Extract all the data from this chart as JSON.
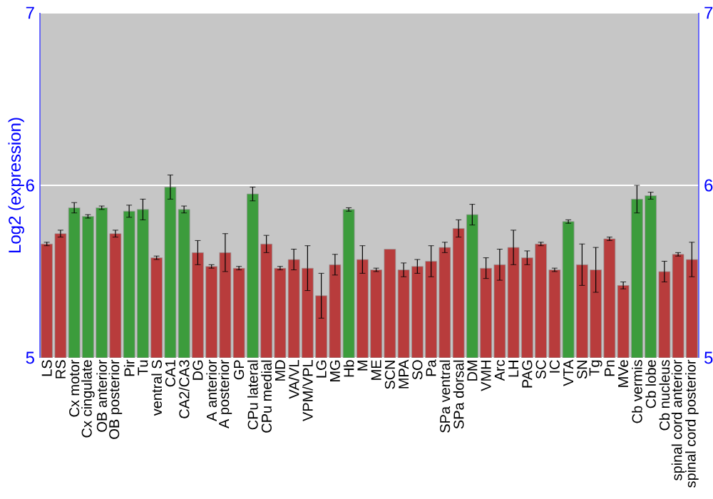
{
  "chart_data": {
    "type": "bar",
    "ylabel": "Log2 (expression)",
    "categories": [
      "LS",
      "RS",
      "Cx motor",
      "Cx cingulate",
      "OB anterior",
      "OB posterior",
      "Pir",
      "Tu",
      "ventral S",
      "CA1",
      "CA2/CA3",
      "DG",
      "A anterior",
      "A posterior",
      "GP",
      "CPu lateral",
      "CPu medial",
      "MD",
      "VA/VL",
      "VPM/VPL",
      "LG",
      "MG",
      "Hb",
      "M",
      "ME",
      "SCN",
      "MPA",
      "SO",
      "Pa",
      "SPa ventral",
      "SPa dorsal",
      "DM",
      "VMH",
      "Arc",
      "LH",
      "PAG",
      "SC",
      "IC",
      "VTA",
      "SN",
      "Tg",
      "Pn",
      "MVe",
      "Cb vermis",
      "Cb lobe",
      "Cb nucleus",
      "spinal cord anterior",
      "spinal cord posterior"
    ],
    "values": [
      5.66,
      5.72,
      5.87,
      5.82,
      5.87,
      5.72,
      5.85,
      5.86,
      5.58,
      5.99,
      5.86,
      5.61,
      5.53,
      5.61,
      5.52,
      5.95,
      5.66,
      5.52,
      5.57,
      5.52,
      5.36,
      5.54,
      5.86,
      5.57,
      5.51,
      5.63,
      5.51,
      5.53,
      5.56,
      5.64,
      5.75,
      5.83,
      5.52,
      5.54,
      5.64,
      5.58,
      5.66,
      5.51,
      5.79,
      5.54,
      5.51,
      5.69,
      5.42,
      5.92,
      5.94,
      5.5,
      5.6,
      5.57
    ],
    "errors": [
      0.01,
      0.02,
      0.03,
      0.01,
      0.01,
      0.02,
      0.035,
      0.06,
      0.01,
      0.07,
      0.02,
      0.07,
      0.01,
      0.11,
      0.01,
      0.04,
      0.05,
      0.01,
      0.06,
      0.13,
      0.13,
      0.06,
      0.01,
      0.08,
      0.01,
      null,
      0.04,
      0.04,
      0.09,
      0.03,
      0.05,
      0.06,
      0.06,
      0.09,
      0.1,
      0.04,
      0.01,
      0.01,
      0.01,
      0.12,
      0.13,
      0.01,
      0.02,
      0.08,
      0.02,
      0.06,
      0.01,
      0.1
    ],
    "colors": [
      "#b83c3c",
      "#b83c3c",
      "#3c9c3c",
      "#3c9c3c",
      "#3c9c3c",
      "#b83c3c",
      "#3c9c3c",
      "#3c9c3c",
      "#b83c3c",
      "#3c9c3c",
      "#3c9c3c",
      "#b83c3c",
      "#b83c3c",
      "#b83c3c",
      "#b83c3c",
      "#3c9c3c",
      "#b83c3c",
      "#b83c3c",
      "#b83c3c",
      "#b83c3c",
      "#b83c3c",
      "#b83c3c",
      "#3c9c3c",
      "#b83c3c",
      "#b83c3c",
      "#b83c3c",
      "#b83c3c",
      "#b83c3c",
      "#b83c3c",
      "#b83c3c",
      "#b83c3c",
      "#3c9c3c",
      "#b83c3c",
      "#b83c3c",
      "#b83c3c",
      "#b83c3c",
      "#b83c3c",
      "#b83c3c",
      "#3c9c3c",
      "#b83c3c",
      "#b83c3c",
      "#b83c3c",
      "#b83c3c",
      "#3c9c3c",
      "#3c9c3c",
      "#b83c3c",
      "#b83c3c",
      "#b83c3c"
    ],
    "ylim": [
      5,
      7
    ],
    "yticks": [
      5,
      6,
      7
    ],
    "y2lim": [
      5,
      7
    ],
    "y2ticks": [
      5,
      6,
      7
    ],
    "grid": "y"
  }
}
